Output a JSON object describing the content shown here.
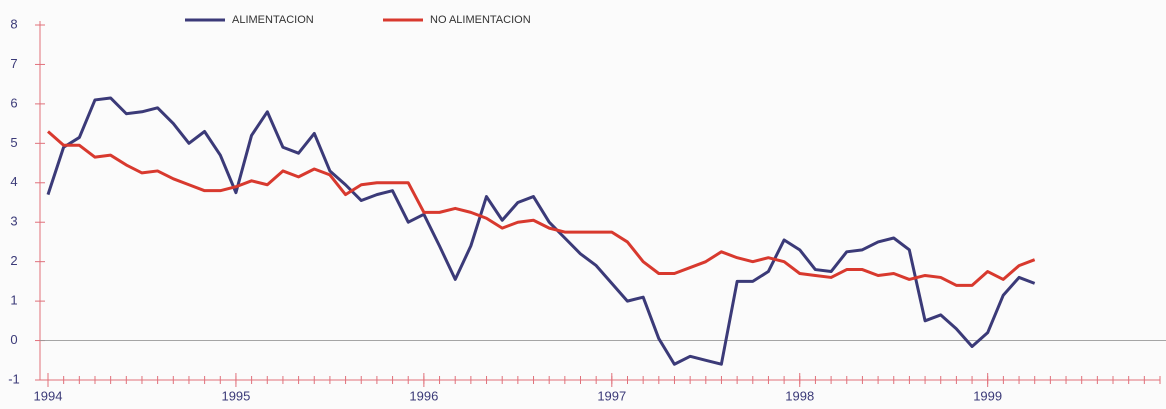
{
  "chart_data": {
    "type": "line",
    "legend": "top",
    "grid": false,
    "xlim": [
      1994,
      1999.917
    ],
    "xticks": [
      1994,
      1995,
      1996,
      1997,
      1998,
      1999
    ],
    "ylim": [
      -1,
      8
    ],
    "yticks": [
      -1,
      0,
      1,
      2,
      3,
      4,
      5,
      6,
      7,
      8
    ],
    "x": [
      1994,
      1994.083,
      1994.167,
      1994.25,
      1994.333,
      1994.417,
      1994.5,
      1994.583,
      1994.667,
      1994.75,
      1994.833,
      1994.917,
      1995,
      1995.083,
      1995.167,
      1995.25,
      1995.333,
      1995.417,
      1995.5,
      1995.583,
      1995.667,
      1995.75,
      1995.833,
      1995.917,
      1996,
      1996.083,
      1996.167,
      1996.25,
      1996.333,
      1996.417,
      1996.5,
      1996.583,
      1996.667,
      1996.75,
      1996.833,
      1996.917,
      1997,
      1997.083,
      1997.167,
      1997.25,
      1997.333,
      1997.417,
      1997.5,
      1997.583,
      1997.667,
      1997.75,
      1997.833,
      1997.917,
      1998,
      1998.083,
      1998.167,
      1998.25,
      1998.333,
      1998.417,
      1998.5,
      1998.583,
      1998.667,
      1998.75,
      1998.833,
      1998.917,
      1999,
      1999.083,
      1999.167,
      1999.25
    ],
    "series": [
      {
        "name": "ALIMENTACION",
        "color": "#3b3a78",
        "values": [
          3.7,
          4.9,
          5.15,
          6.1,
          6.15,
          5.75,
          5.8,
          5.9,
          5.5,
          5.0,
          5.3,
          4.7,
          3.75,
          5.2,
          5.8,
          4.9,
          4.75,
          5.25,
          4.3,
          3.95,
          3.55,
          3.7,
          3.8,
          3.0,
          3.2,
          2.4,
          1.55,
          2.4,
          3.65,
          3.05,
          3.5,
          3.65,
          3.0,
          2.6,
          2.2,
          1.9,
          1.45,
          1.0,
          1.1,
          0.05,
          -0.6,
          -0.4,
          -0.5,
          -0.6,
          1.5,
          1.5,
          1.75,
          2.55,
          2.3,
          1.8,
          1.75,
          2.25,
          2.3,
          2.5,
          2.6,
          2.3,
          0.5,
          0.65,
          0.3,
          -0.15,
          0.2,
          1.15,
          1.6,
          1.45
        ]
      },
      {
        "name": "NO ALIMENTACION",
        "color": "#d8392e",
        "values": [
          5.3,
          4.95,
          4.95,
          4.65,
          4.7,
          4.45,
          4.25,
          4.3,
          4.1,
          3.95,
          3.8,
          3.8,
          3.9,
          4.05,
          3.95,
          4.3,
          4.15,
          4.35,
          4.2,
          3.7,
          3.95,
          4.0,
          4.0,
          4.0,
          3.25,
          3.25,
          3.35,
          3.25,
          3.1,
          2.85,
          3.0,
          3.05,
          2.85,
          2.75,
          2.75,
          2.75,
          2.75,
          2.5,
          2.0,
          1.7,
          1.7,
          1.85,
          2.0,
          2.25,
          2.1,
          2.0,
          2.1,
          2.0,
          1.7,
          1.65,
          1.6,
          1.8,
          1.8,
          1.65,
          1.7,
          1.55,
          1.65,
          1.6,
          1.4,
          1.4,
          1.75,
          1.55,
          1.9,
          2.05
        ]
      }
    ]
  }
}
